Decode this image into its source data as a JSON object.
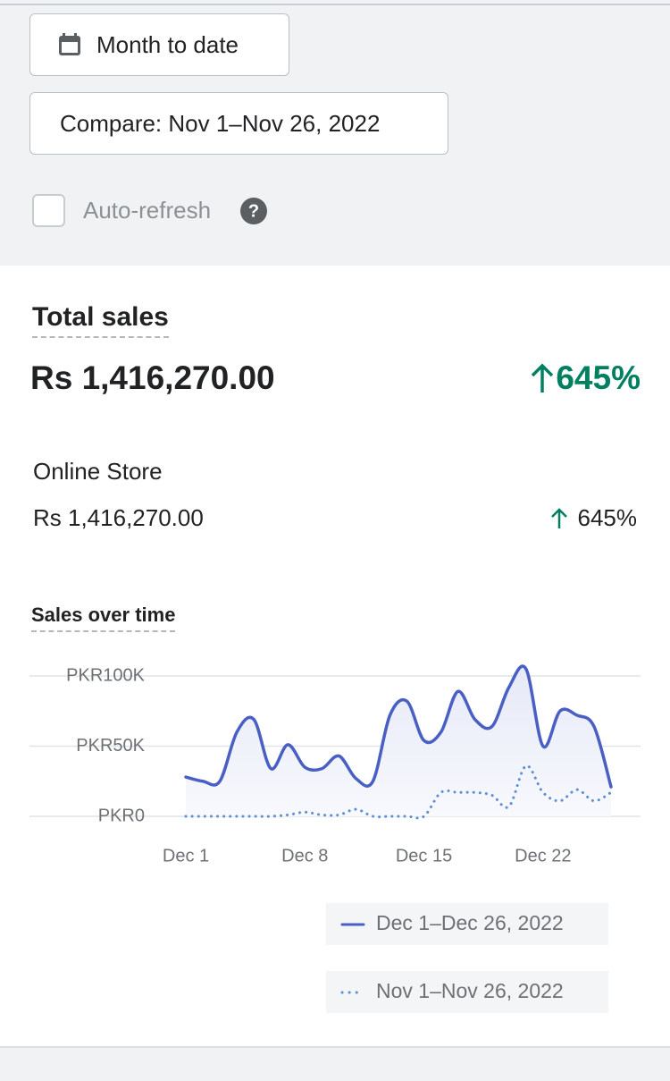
{
  "controls": {
    "date_range": "Month to date",
    "compare": "Compare: Nov 1–Nov 26, 2022",
    "auto_refresh": "Auto-refresh"
  },
  "total_sales": {
    "title": "Total sales",
    "value": "Rs 1,416,270.00",
    "change": "645%"
  },
  "breakdown": {
    "channel": "Online Store",
    "value": "Rs 1,416,270.00",
    "change": "645%"
  },
  "chart_data": {
    "type": "line",
    "title": "Sales over time",
    "categories": [
      "Dec 1",
      null,
      null,
      null,
      null,
      null,
      null,
      "Dec 8",
      null,
      null,
      null,
      null,
      null,
      null,
      "Dec 15",
      null,
      null,
      null,
      null,
      null,
      null,
      "Dec 22",
      null,
      null,
      null,
      null
    ],
    "series": [
      {
        "name": "Dec 1–Dec 26, 2022",
        "color": "#4a5fc4",
        "style": "solid",
        "values": [
          28,
          25,
          25,
          60,
          69,
          34,
          51,
          35,
          34,
          43,
          27,
          25,
          72,
          82,
          54,
          60,
          89,
          69,
          64,
          92,
          105,
          50,
          75,
          72,
          64,
          21
        ]
      },
      {
        "name": "Nov 1–Nov 26, 2022",
        "color": "#5b8ed4",
        "style": "dotted",
        "values": [
          0,
          0,
          0,
          0,
          0,
          0,
          1,
          3,
          1,
          1,
          5,
          0,
          0,
          0,
          0,
          17,
          17,
          17,
          15,
          7,
          36,
          17,
          11,
          19,
          11,
          17
        ]
      }
    ],
    "ylim": [
      0,
      100
    ],
    "yticks": [
      {
        "value": 0,
        "label": "PKR0"
      },
      {
        "value": 50,
        "label": "PKR50K"
      },
      {
        "value": 100,
        "label": "PKR100K"
      }
    ],
    "grid": true
  }
}
